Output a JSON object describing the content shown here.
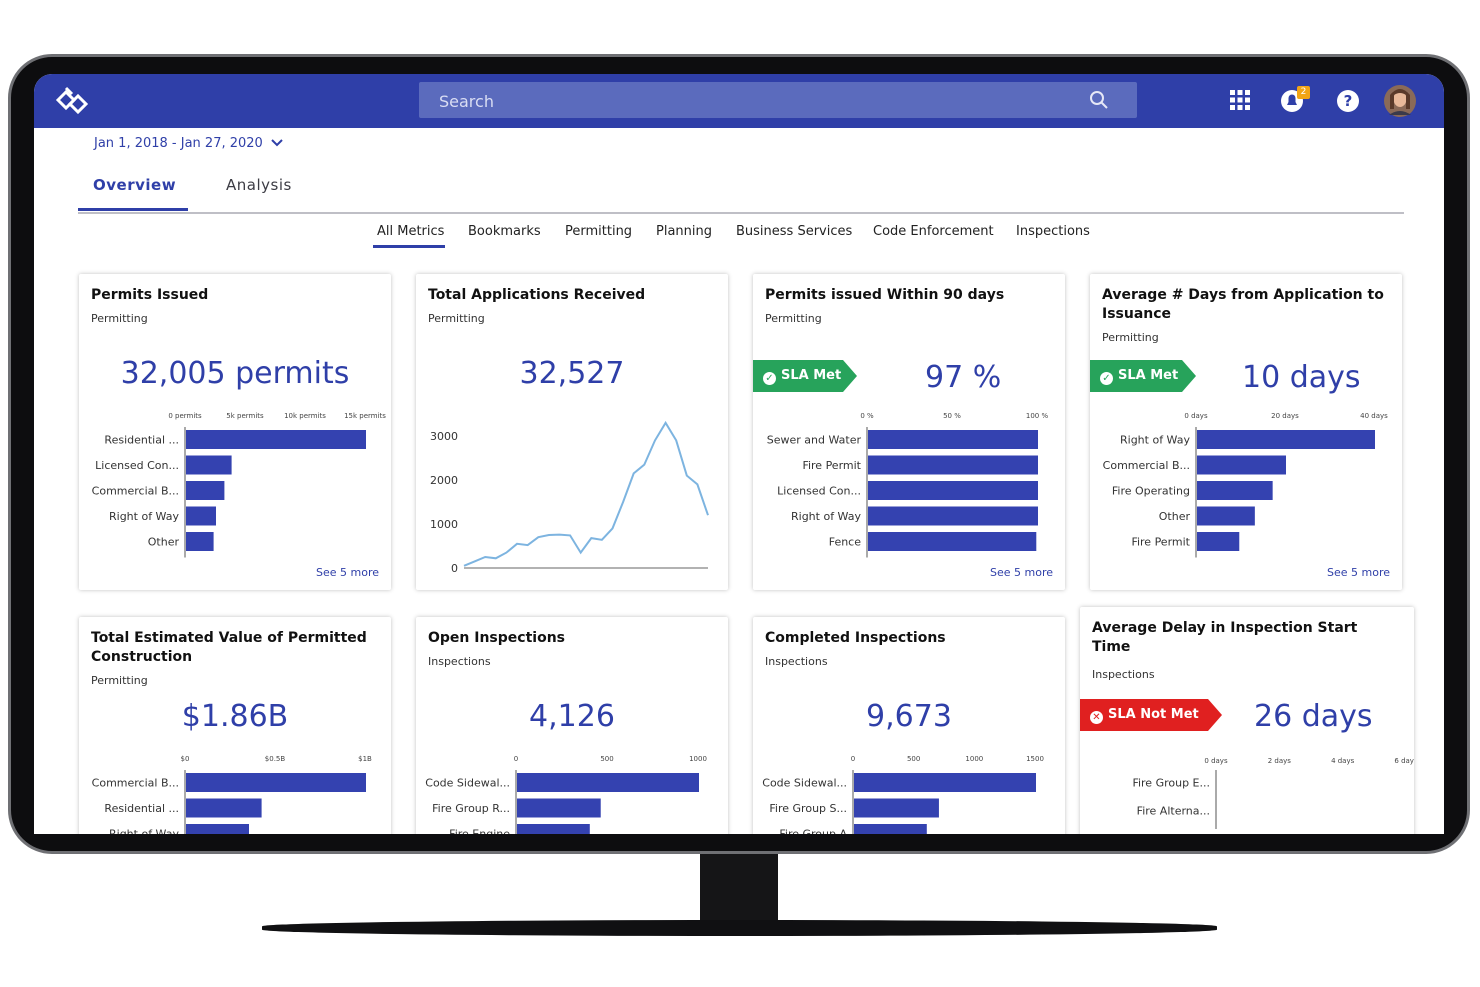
{
  "header": {
    "search_placeholder": "Search",
    "notification_count": "2"
  },
  "date_range": "Jan 1, 2018 - Jan 27, 2020",
  "tabs": [
    "Overview",
    "Analysis"
  ],
  "subtabs": [
    "All Metrics",
    "Bookmarks",
    "Permitting",
    "Planning",
    "Business Services",
    "Code Enforcement",
    "Inspections"
  ],
  "colors": {
    "primary": "#2f3fa8",
    "sla_met": "#27a35b",
    "sla_not_met": "#e02020",
    "bar": "#3442b0",
    "line": "#7db4e0"
  },
  "cards": [
    {
      "title": "Permits Issued",
      "subtitle": "Permitting",
      "value": "32,005 permits",
      "see_more": "See 5 more",
      "chart_data": {
        "type": "bar",
        "orientation": "horizontal",
        "ticks": [
          "0 permits",
          "5k permits",
          "10k permits",
          "15k permits"
        ],
        "xlim": [
          0,
          15000
        ],
        "categories": [
          "Residential ...",
          "Licensed Con...",
          "Commercial B...",
          "Right of Way",
          "Other"
        ],
        "values": [
          15000,
          3800,
          3200,
          2500,
          2300
        ]
      }
    },
    {
      "title": "Total Applications Received",
      "subtitle": "Permitting",
      "value": "32,527",
      "chart_data": {
        "type": "line",
        "yticks": [
          "3000",
          "2000",
          "1000",
          "0"
        ],
        "ylim": [
          0,
          3000
        ],
        "values": [
          50,
          150,
          250,
          220,
          350,
          550,
          520,
          700,
          750,
          760,
          740,
          350,
          680,
          640,
          900,
          1500,
          2150,
          2350,
          2900,
          3300,
          2900,
          2100,
          1900,
          1200
        ]
      }
    },
    {
      "title": "Permits issued Within 90 days",
      "subtitle": "Permitting",
      "value": "97 %",
      "sla": "SLA Met",
      "see_more": "See 5 more",
      "chart_data": {
        "type": "bar",
        "orientation": "horizontal",
        "ticks": [
          "0 %",
          "50 %",
          "100 %"
        ],
        "xlim": [
          0,
          100
        ],
        "categories": [
          "Sewer and Water",
          "Fire Permit",
          "Licensed Con...",
          "Right of Way",
          "Fence"
        ],
        "values": [
          100,
          100,
          100,
          100,
          99
        ]
      }
    },
    {
      "title": "Average # Days from Application to Issuance",
      "subtitle": "Permitting",
      "value": "10 days",
      "sla": "SLA Met",
      "see_more": "See 5 more",
      "chart_data": {
        "type": "bar",
        "orientation": "horizontal",
        "ticks": [
          "0 days",
          "20 days",
          "40 days"
        ],
        "xlim": [
          0,
          40
        ],
        "categories": [
          "Right of Way",
          "Commercial B...",
          "Fire Operating",
          "Other",
          "Fire Permit"
        ],
        "values": [
          40,
          20,
          17,
          13,
          9.5
        ]
      }
    },
    {
      "title": "Total Estimated Value of Permitted Construction",
      "subtitle": "Permitting",
      "value": "$1.86B",
      "chart_data": {
        "type": "bar",
        "orientation": "horizontal",
        "ticks": [
          "$0",
          "$0.5B",
          "$1B"
        ],
        "xlim": [
          0,
          1
        ],
        "categories": [
          "Commercial B...",
          "Residential ...",
          "Right of Way"
        ],
        "values": [
          1.0,
          0.42,
          0.35
        ]
      }
    },
    {
      "title": "Open Inspections",
      "subtitle": "Inspections",
      "value": "4,126",
      "chart_data": {
        "type": "bar",
        "orientation": "horizontal",
        "ticks": [
          "0",
          "500",
          "1000"
        ],
        "xlim": [
          0,
          1000
        ],
        "categories": [
          "Code Sidewal...",
          "Fire Group R...",
          "Fire Engine"
        ],
        "values": [
          1000,
          460,
          400
        ]
      }
    },
    {
      "title": "Completed Inspections",
      "subtitle": "Inspections",
      "value": "9,673",
      "chart_data": {
        "type": "bar",
        "orientation": "horizontal",
        "ticks": [
          "0",
          "500",
          "1000",
          "1500"
        ],
        "xlim": [
          0,
          1500
        ],
        "categories": [
          "Code Sidewal...",
          "Fire Group S...",
          "Fire Group A"
        ],
        "values": [
          1500,
          700,
          600
        ]
      }
    },
    {
      "title": "Average Delay in Inspection Start Time",
      "subtitle": "Inspections",
      "value": "26 days",
      "sla": "SLA Not Met",
      "chart_data": {
        "type": "bar",
        "orientation": "horizontal",
        "ticks": [
          "0 days",
          "2 days",
          "4 days",
          "6 days"
        ],
        "xlim": [
          0,
          6
        ],
        "categories": [
          "Fire Group E...",
          "Fire Alterna..."
        ],
        "values": [
          0,
          0
        ]
      }
    }
  ]
}
